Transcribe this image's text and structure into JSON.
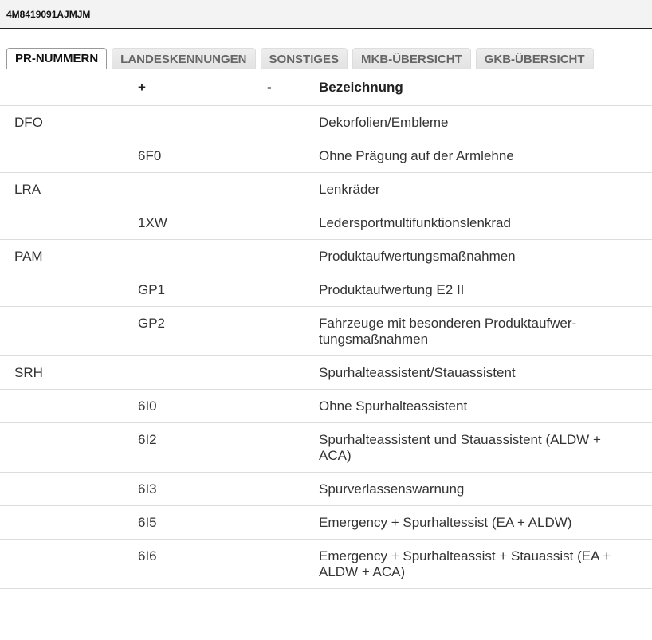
{
  "header": {
    "title": "4M8419091AJMJM"
  },
  "tabs": [
    {
      "label": "PR-NUMMERN",
      "active": true
    },
    {
      "label": "LANDESKENNUNGEN",
      "active": false
    },
    {
      "label": "SONSTIGES",
      "active": false
    },
    {
      "label": "MKB-ÜBERSICHT",
      "active": false
    },
    {
      "label": "GKB-ÜBERSICHT",
      "active": false
    }
  ],
  "table": {
    "columns": [
      "",
      "+",
      "-",
      "Bezeichnung"
    ],
    "rows": [
      [
        "DFO",
        "",
        "",
        "Dekorfolien/Embleme"
      ],
      [
        "",
        "6F0",
        "",
        "Ohne Prägung auf der Armlehne"
      ],
      [
        "LRA",
        "",
        "",
        "Lenkräder"
      ],
      [
        "",
        "1XW",
        "",
        "Ledersportmultifunktionslenkrad"
      ],
      [
        "PAM",
        "",
        "",
        "Produktaufwertungsmaßnahmen"
      ],
      [
        "",
        "GP1",
        "",
        "Produktaufwertung E2 II"
      ],
      [
        "",
        "GP2",
        "",
        "Fahrzeuge mit besonderen Produktaufwer-tungsmaßnahmen"
      ],
      [
        "SRH",
        "",
        "",
        "Spurhalteassistent/Stauassistent"
      ],
      [
        "",
        "6I0",
        "",
        "Ohne Spurhalteassistent"
      ],
      [
        "",
        "6I2",
        "",
        "Spurhalteassistent und Stauassistent (ALDW + ACA)"
      ],
      [
        "",
        "6I3",
        "",
        "Spurverlassenswarnung"
      ],
      [
        "",
        "6I5",
        "",
        "Emergency + Spurhaltessist (EA + ALDW)"
      ],
      [
        "",
        "6I6",
        "",
        "Emergency + Spurhalteassist + Stauassist (EA + ALDW + ACA)"
      ]
    ]
  }
}
